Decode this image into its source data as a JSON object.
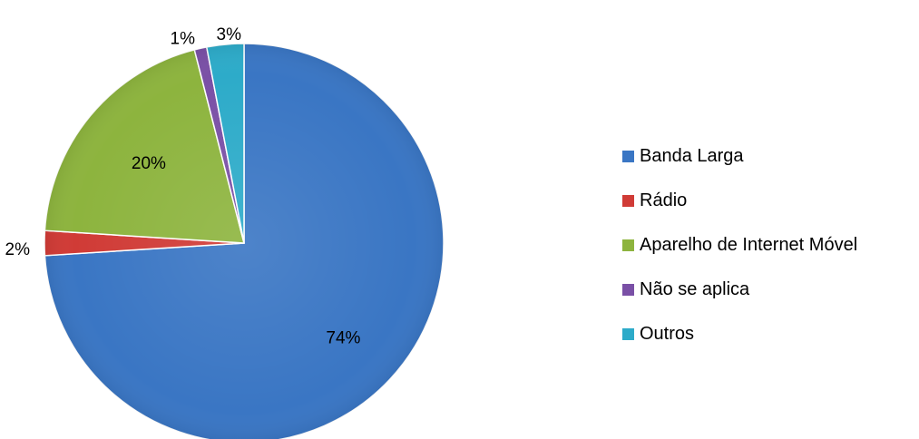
{
  "chart_data": {
    "type": "pie",
    "title": "",
    "start_angle_deg": 0,
    "direction": "clockwise",
    "legend_position": "right",
    "slices": [
      {
        "name": "Banda Larga",
        "value": 74,
        "label": "74%",
        "color": "#3A76C4"
      },
      {
        "name": "Rádio",
        "value": 2,
        "label": "2%",
        "color": "#D03B36"
      },
      {
        "name": "Aparelho de Internet Móvel",
        "value": 20,
        "label": "20%",
        "color": "#8DB43E"
      },
      {
        "name": "Não se aplica",
        "value": 1,
        "label": "1%",
        "color": "#7A50A6"
      },
      {
        "name": "Outros",
        "value": 3,
        "label": "3%",
        "color": "#2DABC9"
      }
    ]
  }
}
